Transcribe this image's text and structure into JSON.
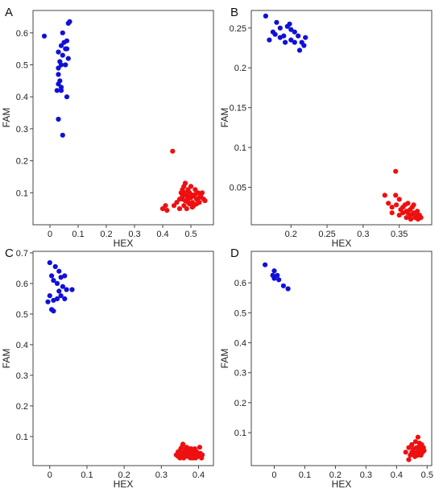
{
  "figure": {
    "title": ""
  },
  "colors": {
    "cluster_blue": "#1010d8",
    "cluster_red": "#ee1010",
    "frame": "#444444"
  },
  "chart_data": [
    {
      "type": "scatter",
      "panel_label": "A",
      "xlabel": "HEX",
      "ylabel": "FAM",
      "xlim": [
        -0.06,
        0.58
      ],
      "ylim": [
        0.0,
        0.67
      ],
      "xticks": [
        0,
        0.1,
        0.2,
        0.3,
        0.4,
        0.5
      ],
      "xtick_labels": [
        "0",
        "0.1",
        "0.2",
        "0.3",
        "0.4",
        "0.5"
      ],
      "yticks": [
        0.1,
        0.2,
        0.3,
        0.4,
        0.5,
        0.6
      ],
      "ytick_labels": [
        "0.1",
        "0.2",
        "0.3",
        "0.4",
        "0.5",
        "0.6"
      ],
      "grid": false,
      "legend": "none",
      "series": [
        {
          "color": "#1010d8",
          "points": [
            [
              -0.02,
              0.59
            ],
            [
              0.065,
              0.63
            ],
            [
              0.07,
              0.635
            ],
            [
              0.045,
              0.6
            ],
            [
              0.05,
              0.57
            ],
            [
              0.06,
              0.575
            ],
            [
              0.04,
              0.56
            ],
            [
              0.055,
              0.55
            ],
            [
              0.06,
              0.55
            ],
            [
              0.03,
              0.54
            ],
            [
              0.045,
              0.53
            ],
            [
              0.065,
              0.52
            ],
            [
              0.035,
              0.51
            ],
            [
              0.055,
              0.5
            ],
            [
              0.04,
              0.5
            ],
            [
              0.03,
              0.49
            ],
            [
              0.03,
              0.47
            ],
            [
              0.035,
              0.45
            ],
            [
              0.03,
              0.44
            ],
            [
              0.04,
              0.43
            ],
            [
              0.025,
              0.42
            ],
            [
              0.04,
              0.42
            ],
            [
              0.06,
              0.4
            ],
            [
              0.03,
              0.33
            ],
            [
              0.045,
              0.28
            ]
          ]
        },
        {
          "color": "#ee1010",
          "points": [
            [
              0.435,
              0.23
            ],
            [
              0.4,
              0.05
            ],
            [
              0.41,
              0.06
            ],
            [
              0.415,
              0.045
            ],
            [
              0.44,
              0.06
            ],
            [
              0.45,
              0.07
            ],
            [
              0.46,
              0.08
            ],
            [
              0.465,
              0.1
            ],
            [
              0.47,
              0.11
            ],
            [
              0.475,
              0.12
            ],
            [
              0.48,
              0.13
            ],
            [
              0.485,
              0.09
            ],
            [
              0.49,
              0.08
            ],
            [
              0.495,
              0.1
            ],
            [
              0.5,
              0.12
            ],
            [
              0.505,
              0.07
            ],
            [
              0.51,
              0.09
            ],
            [
              0.515,
              0.11
            ],
            [
              0.52,
              0.08
            ],
            [
              0.525,
              0.1
            ],
            [
              0.53,
              0.07
            ],
            [
              0.535,
              0.09
            ],
            [
              0.54,
              0.1
            ],
            [
              0.545,
              0.08
            ],
            [
              0.475,
              0.06
            ],
            [
              0.485,
              0.05
            ],
            [
              0.495,
              0.065
            ],
            [
              0.505,
              0.055
            ],
            [
              0.47,
              0.09
            ],
            [
              0.48,
              0.075
            ],
            [
              0.49,
              0.11
            ],
            [
              0.5,
              0.095
            ],
            [
              0.51,
              0.06
            ],
            [
              0.52,
              0.065
            ],
            [
              0.46,
              0.05
            ],
            [
              0.53,
              0.085
            ],
            [
              0.55,
              0.075
            ],
            [
              0.5,
              0.085
            ],
            [
              0.49,
              0.07
            ],
            [
              0.48,
              0.1
            ],
            [
              0.47,
              0.08
            ],
            [
              0.515,
              0.095
            ]
          ]
        }
      ]
    },
    {
      "type": "scatter",
      "panel_label": "B",
      "xlabel": "HEX",
      "ylabel": "FAM",
      "xlim": [
        0.145,
        0.395
      ],
      "ylim": [
        0.003,
        0.272
      ],
      "xticks": [
        0.2,
        0.25,
        0.3,
        0.35
      ],
      "xtick_labels": [
        "0.2",
        "0.25",
        "0.3",
        "0.35"
      ],
      "yticks": [
        0.05,
        0.1,
        0.15,
        0.2,
        0.25
      ],
      "ytick_labels": [
        "0.05",
        "0.1",
        "0.15",
        "0.2",
        "0.25"
      ],
      "grid": false,
      "legend": "none",
      "series": [
        {
          "color": "#1010d8",
          "points": [
            [
              0.165,
              0.265
            ],
            [
              0.18,
              0.257
            ],
            [
              0.175,
              0.245
            ],
            [
              0.185,
              0.25
            ],
            [
              0.19,
              0.24
            ],
            [
              0.195,
              0.252
            ],
            [
              0.2,
              0.248
            ],
            [
              0.205,
              0.245
            ],
            [
              0.21,
              0.24
            ],
            [
              0.2,
              0.235
            ],
            [
              0.215,
              0.232
            ],
            [
              0.22,
              0.238
            ],
            [
              0.218,
              0.228
            ],
            [
              0.205,
              0.232
            ],
            [
              0.185,
              0.238
            ],
            [
              0.17,
              0.235
            ],
            [
              0.212,
              0.222
            ],
            [
              0.198,
              0.255
            ],
            [
              0.178,
              0.242
            ],
            [
              0.192,
              0.232
            ]
          ]
        },
        {
          "color": "#ee1010",
          "points": [
            [
              0.345,
              0.07
            ],
            [
              0.33,
              0.04
            ],
            [
              0.335,
              0.03
            ],
            [
              0.34,
              0.025
            ],
            [
              0.345,
              0.04
            ],
            [
              0.35,
              0.035
            ],
            [
              0.355,
              0.025
            ],
            [
              0.36,
              0.02
            ],
            [
              0.362,
              0.03
            ],
            [
              0.365,
              0.015
            ],
            [
              0.368,
              0.025
            ],
            [
              0.37,
              0.018
            ],
            [
              0.372,
              0.012
            ],
            [
              0.375,
              0.02
            ],
            [
              0.376,
              0.01
            ],
            [
              0.378,
              0.015
            ],
            [
              0.38,
              0.012
            ],
            [
              0.35,
              0.015
            ],
            [
              0.355,
              0.018
            ],
            [
              0.36,
              0.012
            ],
            [
              0.365,
              0.022
            ],
            [
              0.34,
              0.018
            ],
            [
              0.37,
              0.028
            ],
            [
              0.358,
              0.028
            ],
            [
              0.366,
              0.01
            ],
            [
              0.374,
              0.014
            ],
            [
              0.352,
              0.022
            ],
            [
              0.346,
              0.028
            ],
            [
              0.368,
              0.016
            ],
            [
              0.362,
              0.018
            ]
          ]
        }
      ]
    },
    {
      "type": "scatter",
      "panel_label": "C",
      "xlabel": "HEX",
      "ylabel": "FAM",
      "xlim": [
        -0.045,
        0.44
      ],
      "ylim": [
        0.005,
        0.705
      ],
      "xticks": [
        0,
        0.1,
        0.2,
        0.3,
        0.4
      ],
      "xtick_labels": [
        "0",
        "0.1",
        "0.2",
        "0.3",
        "0.4"
      ],
      "yticks": [
        0.1,
        0.2,
        0.3,
        0.4,
        0.5,
        0.6,
        0.7
      ],
      "ytick_labels": [
        "0.1",
        "0.2",
        "0.3",
        "0.4",
        "0.5",
        "0.6",
        "0.7"
      ],
      "grid": false,
      "legend": "none",
      "series": [
        {
          "color": "#1010d8",
          "points": [
            [
              0.0,
              0.668
            ],
            [
              0.015,
              0.655
            ],
            [
              0.025,
              0.64
            ],
            [
              0.005,
              0.625
            ],
            [
              0.01,
              0.61
            ],
            [
              0.03,
              0.62
            ],
            [
              0.04,
              0.625
            ],
            [
              0.02,
              0.6
            ],
            [
              0.035,
              0.59
            ],
            [
              0.045,
              0.58
            ],
            [
              0.06,
              0.58
            ],
            [
              0.025,
              0.575
            ],
            [
              0.0,
              0.56
            ],
            [
              0.02,
              0.55
            ],
            [
              0.04,
              0.55
            ],
            [
              -0.005,
              0.54
            ],
            [
              0.01,
              0.545
            ],
            [
              0.005,
              0.515
            ],
            [
              0.01,
              0.51
            ],
            [
              0.03,
              0.56
            ]
          ]
        },
        {
          "color": "#ee1010",
          "points": [
            [
              0.34,
              0.04
            ],
            [
              0.345,
              0.05
            ],
            [
              0.35,
              0.035
            ],
            [
              0.352,
              0.06
            ],
            [
              0.355,
              0.045
            ],
            [
              0.358,
              0.075
            ],
            [
              0.36,
              0.03
            ],
            [
              0.362,
              0.05
            ],
            [
              0.365,
              0.04
            ],
            [
              0.368,
              0.065
            ],
            [
              0.37,
              0.035
            ],
            [
              0.372,
              0.05
            ],
            [
              0.375,
              0.045
            ],
            [
              0.378,
              0.03
            ],
            [
              0.38,
              0.06
            ],
            [
              0.382,
              0.04
            ],
            [
              0.385,
              0.05
            ],
            [
              0.388,
              0.035
            ],
            [
              0.39,
              0.045
            ],
            [
              0.392,
              0.03
            ],
            [
              0.395,
              0.05
            ],
            [
              0.398,
              0.04
            ],
            [
              0.4,
              0.035
            ],
            [
              0.403,
              0.065
            ],
            [
              0.405,
              0.045
            ],
            [
              0.408,
              0.03
            ],
            [
              0.41,
              0.04
            ],
            [
              0.36,
              0.04
            ],
            [
              0.37,
              0.05
            ],
            [
              0.38,
              0.035
            ],
            [
              0.39,
              0.06
            ],
            [
              0.35,
              0.03
            ],
            [
              0.365,
              0.055
            ],
            [
              0.375,
              0.06
            ],
            [
              0.385,
              0.03
            ],
            [
              0.395,
              0.035
            ],
            [
              0.355,
              0.065
            ],
            [
              0.345,
              0.035
            ]
          ]
        }
      ]
    },
    {
      "type": "scatter",
      "panel_label": "D",
      "xlabel": "HEX",
      "ylabel": "FAM",
      "xlim": [
        -0.075,
        0.515
      ],
      "ylim": [
        -0.01,
        0.705
      ],
      "xticks": [
        0,
        0.1,
        0.2,
        0.3,
        0.4,
        0.5
      ],
      "xtick_labels": [
        "0",
        "0.1",
        "0.2",
        "0.3",
        "0.4",
        "0.5"
      ],
      "yticks": [
        0.1,
        0.2,
        0.3,
        0.4,
        0.5,
        0.6
      ],
      "ytick_labels": [
        "0.1",
        "0.2",
        "0.3",
        "0.4",
        "0.5",
        "0.6"
      ],
      "grid": false,
      "legend": "none",
      "series": [
        {
          "color": "#1010d8",
          "points": [
            [
              -0.03,
              0.66
            ],
            [
              0.0,
              0.64
            ],
            [
              -0.005,
              0.625
            ],
            [
              0.01,
              0.625
            ],
            [
              0.0,
              0.615
            ],
            [
              0.015,
              0.61
            ],
            [
              0.03,
              0.59
            ],
            [
              0.045,
              0.58
            ]
          ]
        },
        {
          "color": "#ee1010",
          "points": [
            [
              0.43,
              0.035
            ],
            [
              0.44,
              0.05
            ],
            [
              0.44,
              0.01
            ],
            [
              0.445,
              0.025
            ],
            [
              0.45,
              0.06
            ],
            [
              0.455,
              0.045
            ],
            [
              0.46,
              0.03
            ],
            [
              0.462,
              0.07
            ],
            [
              0.465,
              0.05
            ],
            [
              0.468,
              0.035
            ],
            [
              0.47,
              0.085
            ],
            [
              0.472,
              0.04
            ],
            [
              0.475,
              0.055
            ],
            [
              0.478,
              0.03
            ],
            [
              0.48,
              0.045
            ],
            [
              0.482,
              0.06
            ],
            [
              0.485,
              0.035
            ],
            [
              0.488,
              0.05
            ],
            [
              0.49,
              0.04
            ],
            [
              0.46,
              0.02
            ],
            [
              0.47,
              0.025
            ],
            [
              0.48,
              0.025
            ],
            [
              0.45,
              0.035
            ],
            [
              0.475,
              0.065
            ]
          ]
        }
      ]
    }
  ]
}
